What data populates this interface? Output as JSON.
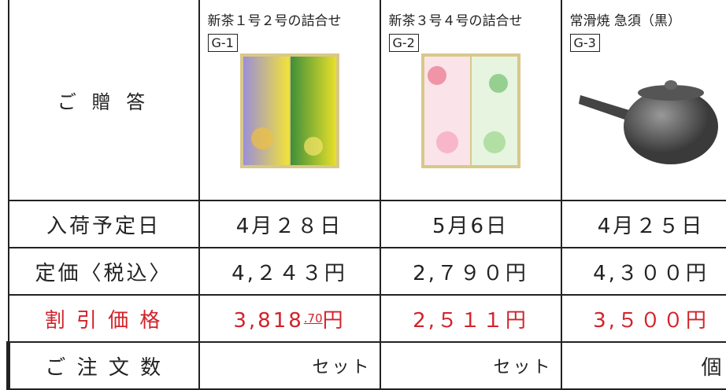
{
  "header": {
    "label": "ご 贈 答"
  },
  "products": [
    {
      "name": "新茶１号２号の詰合せ",
      "code": "G-1"
    },
    {
      "name": "新茶３号４号の詰合せ",
      "code": "G-2"
    },
    {
      "name": "常滑焼 急須（黒）",
      "code": "G-3"
    }
  ],
  "rows": [
    {
      "label": "入荷予定日",
      "cells": [
        "4月２８日",
        "5月6日",
        "4月２５日"
      ]
    },
    {
      "label": "定価〈税込〉",
      "cells": [
        "4,２４３円",
        "2,７９０円",
        "4,３００円"
      ]
    }
  ],
  "discount": {
    "label": "割 引 価 格",
    "cells": [
      [
        "3,818",
        ".70",
        "円"
      ],
      [
        "2,５１１円"
      ],
      [
        "3,５００円"
      ]
    ]
  },
  "order": {
    "label": "ご 注 文 数",
    "cells": [
      "セット",
      "セット",
      "個"
    ]
  }
}
